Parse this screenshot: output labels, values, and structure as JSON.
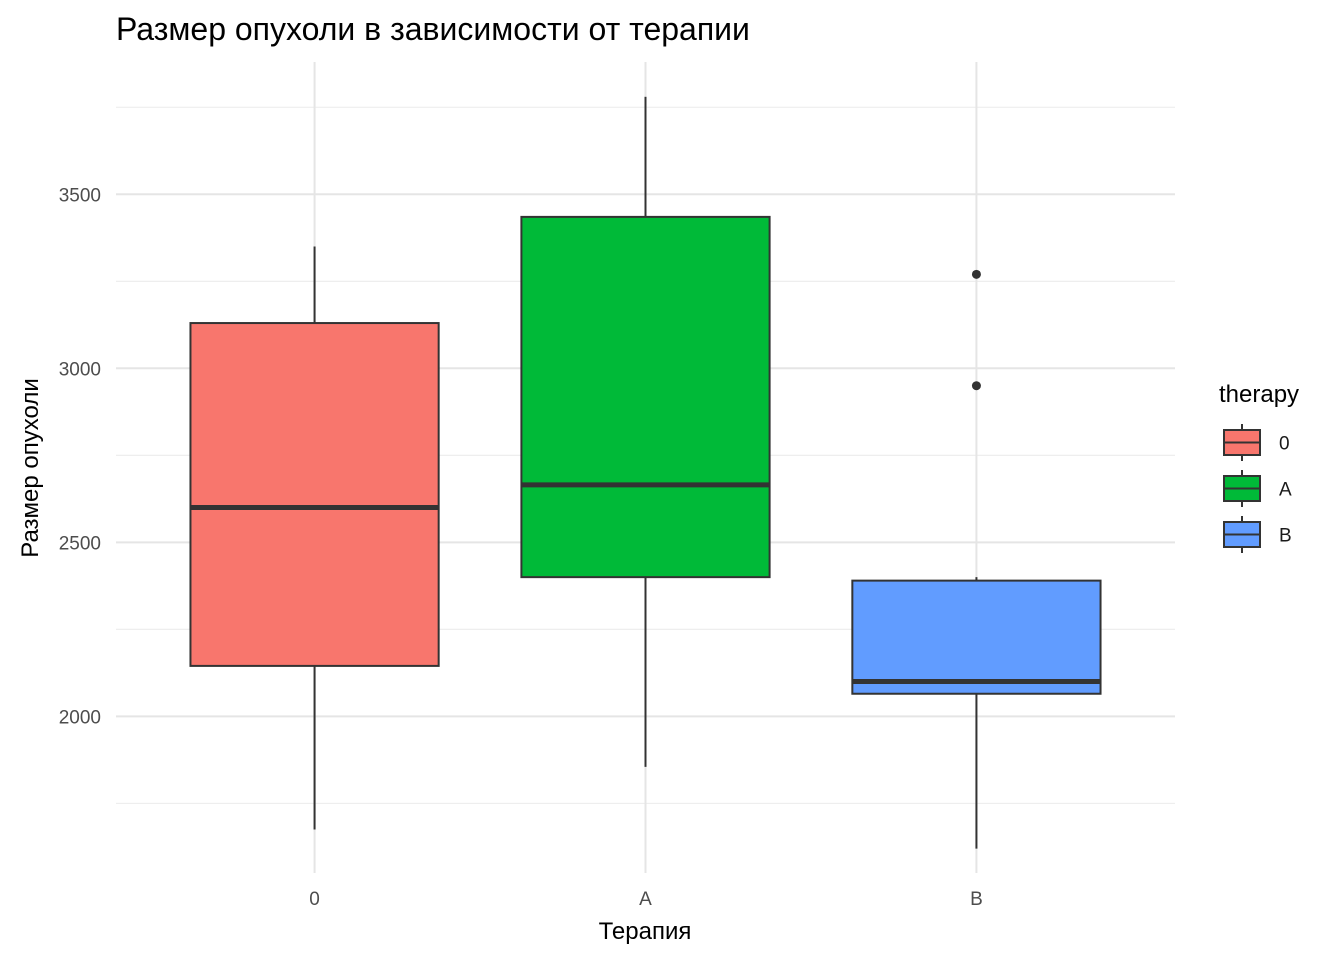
{
  "chart_data": {
    "type": "boxplot",
    "title": "Размер опухоли в зависимости от терапии",
    "xlabel": "Терапия",
    "ylabel": "Размер опухоли",
    "ylim": [
      1550,
      3880
    ],
    "yticks": [
      2000,
      2500,
      3000,
      3500
    ],
    "ytick_labels": [
      "2000",
      "2500",
      "3000",
      "3500"
    ],
    "grid": true,
    "legend": {
      "title": "therapy",
      "position": "right",
      "entries": [
        "0",
        "A",
        "B"
      ]
    },
    "categories": [
      "0",
      "A",
      "B"
    ],
    "colors": [
      "#F8766D",
      "#00BA38",
      "#619CFF"
    ],
    "series": [
      {
        "name": "0",
        "whisker_low": 1675,
        "q1": 2145,
        "median": 2600,
        "q3": 3130,
        "whisker_high": 3350,
        "outliers": []
      },
      {
        "name": "A",
        "whisker_low": 1855,
        "q1": 2400,
        "median": 2665,
        "q3": 3435,
        "whisker_high": 3780,
        "outliers": []
      },
      {
        "name": "B",
        "whisker_low": 1620,
        "q1": 2065,
        "median": 2100,
        "q3": 2390,
        "whisker_high": 2400,
        "outliers": [
          2950,
          3270
        ]
      }
    ]
  }
}
